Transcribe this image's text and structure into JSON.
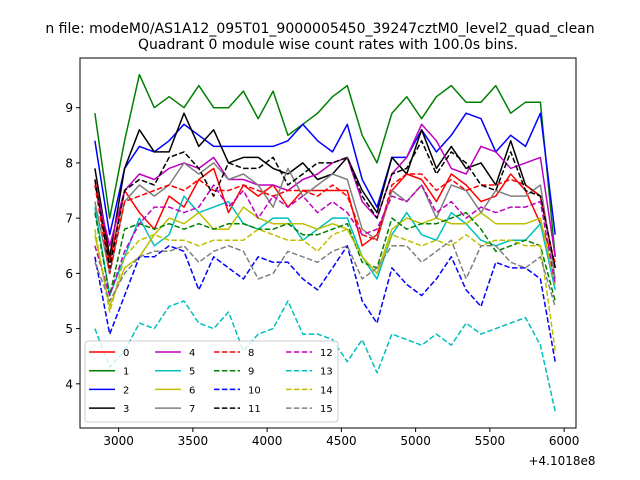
{
  "chart_data": {
    "type": "line",
    "suptitle": "n file: modeM0/AS1A12_095T01_9000005450_39247cztM0_level2_quad_clean",
    "title": "Quadrant 0 module wise count rates with 100.0s bins.",
    "xlabel": "",
    "ylabel": "",
    "x_offset_label": "+4.1018e8",
    "xlim": [
      2740,
      6080
    ],
    "ylim": [
      3.2,
      9.9
    ],
    "x_ticks": [
      3000,
      3500,
      4000,
      4500,
      5000,
      5500,
      6000
    ],
    "x_tick_labels": [
      "3000",
      "3500",
      "4000",
      "4500",
      "5000",
      "5500",
      "6000"
    ],
    "y_ticks": [
      4,
      5,
      6,
      7,
      8,
      9
    ],
    "y_tick_labels": [
      "4",
      "5",
      "6",
      "7",
      "8",
      "9"
    ],
    "grid": false,
    "legend_position": "lower-left",
    "x": [
      2840,
      2940,
      3040,
      3140,
      3240,
      3340,
      3440,
      3540,
      3640,
      3740,
      3840,
      3940,
      4040,
      4140,
      4240,
      4340,
      4440,
      4540,
      4640,
      4740,
      4840,
      4940,
      5040,
      5140,
      5240,
      5340,
      5440,
      5540,
      5640,
      5740,
      5840,
      5940
    ],
    "series": [
      {
        "name": "0",
        "color": "#ff0000",
        "dash": "solid",
        "values": [
          7.7,
          6.2,
          7.5,
          7.1,
          6.8,
          7.4,
          7.2,
          7.7,
          7.9,
          7.1,
          7.6,
          7.4,
          7.6,
          7.2,
          7.5,
          7.5,
          7.5,
          7.5,
          6.5,
          6.7,
          7.5,
          7.8,
          7.7,
          7.3,
          7.8,
          7.6,
          7.3,
          7.4,
          7.8,
          7.5,
          6.9,
          6.2
        ]
      },
      {
        "name": "1",
        "color": "#008000",
        "dash": "solid",
        "values": [
          8.9,
          7.0,
          8.4,
          9.6,
          9.0,
          9.2,
          9.0,
          9.4,
          9.0,
          9.0,
          9.3,
          8.8,
          9.3,
          8.5,
          8.7,
          8.9,
          9.2,
          9.4,
          8.5,
          8.0,
          8.9,
          9.2,
          8.8,
          9.2,
          9.4,
          9.1,
          9.1,
          9.4,
          8.9,
          9.1,
          9.1,
          6.3
        ]
      },
      {
        "name": "2",
        "color": "#0000ff",
        "dash": "solid",
        "values": [
          8.4,
          6.7,
          7.9,
          8.3,
          8.2,
          8.4,
          8.7,
          8.5,
          8.3,
          8.3,
          8.3,
          8.3,
          8.3,
          8.4,
          8.7,
          8.4,
          8.2,
          8.7,
          7.7,
          7.2,
          8.1,
          8.1,
          8.6,
          8.2,
          8.5,
          8.9,
          8.8,
          8.2,
          8.5,
          8.3,
          8.9,
          6.7
        ]
      },
      {
        "name": "3",
        "color": "#000000",
        "dash": "solid",
        "values": [
          7.9,
          6.3,
          7.9,
          8.6,
          8.2,
          8.2,
          8.9,
          8.3,
          8.6,
          8.0,
          8.1,
          8.1,
          7.9,
          7.8,
          8.0,
          7.7,
          7.8,
          8.1,
          7.5,
          7.1,
          8.1,
          7.8,
          8.6,
          7.9,
          8.3,
          7.9,
          8.0,
          7.6,
          8.4,
          7.6,
          7.4,
          6.1
        ]
      },
      {
        "name": "4",
        "color": "#bf00bf",
        "dash": "solid",
        "values": [
          7.6,
          6.5,
          7.5,
          7.8,
          7.7,
          7.9,
          8.0,
          7.9,
          8.1,
          7.7,
          7.7,
          7.6,
          7.6,
          7.5,
          7.7,
          7.8,
          8.0,
          8.1,
          7.3,
          7.0,
          7.8,
          8.1,
          8.7,
          8.4,
          7.9,
          7.8,
          8.3,
          8.2,
          7.9,
          8.0,
          8.1,
          6.3
        ]
      },
      {
        "name": "5",
        "color": "#00bfbf",
        "dash": "solid",
        "values": [
          7.2,
          5.6,
          6.3,
          7.0,
          6.5,
          6.7,
          7.4,
          7.1,
          7.2,
          7.3,
          6.9,
          6.8,
          7.0,
          7.0,
          6.6,
          6.8,
          7.0,
          7.0,
          6.3,
          5.9,
          6.7,
          7.1,
          6.7,
          6.6,
          7.1,
          6.9,
          6.6,
          6.5,
          6.6,
          6.6,
          6.9,
          5.7
        ]
      },
      {
        "name": "6",
        "color": "#bfbf00",
        "dash": "solid",
        "values": [
          6.7,
          5.4,
          6.1,
          6.3,
          6.7,
          7.0,
          6.9,
          7.1,
          6.8,
          6.8,
          7.2,
          7.0,
          6.9,
          6.9,
          6.9,
          6.8,
          6.9,
          6.8,
          6.3,
          6.0,
          6.8,
          7.0,
          6.9,
          7.0,
          6.9,
          6.9,
          7.1,
          6.9,
          6.9,
          6.9,
          7.0,
          5.8
        ]
      },
      {
        "name": "7",
        "color": "#808080",
        "dash": "solid",
        "values": [
          7.3,
          6.0,
          7.3,
          7.6,
          7.4,
          7.6,
          8.0,
          7.8,
          8.0,
          7.7,
          7.8,
          7.6,
          7.2,
          7.9,
          7.4,
          7.6,
          7.8,
          7.7,
          6.8,
          6.6,
          7.5,
          7.3,
          7.6,
          7.0,
          7.6,
          7.5,
          7.1,
          7.5,
          7.4,
          7.4,
          7.6,
          5.9
        ]
      },
      {
        "name": "8",
        "color": "#ff0000",
        "dash": "dashed",
        "values": [
          7.6,
          6.0,
          7.3,
          7.4,
          7.5,
          7.6,
          7.5,
          7.7,
          7.5,
          7.5,
          7.6,
          7.5,
          7.4,
          7.5,
          7.5,
          7.4,
          7.6,
          7.4,
          6.7,
          6.6,
          7.6,
          7.8,
          7.8,
          7.5,
          7.7,
          7.5,
          7.6,
          7.6,
          7.7,
          7.6,
          7.4,
          6.1
        ]
      },
      {
        "name": "9",
        "color": "#008000",
        "dash": "dashed",
        "values": [
          7.1,
          5.6,
          6.8,
          6.9,
          6.8,
          6.9,
          6.8,
          6.9,
          6.8,
          6.9,
          6.9,
          6.8,
          6.8,
          6.9,
          6.7,
          6.7,
          6.8,
          6.9,
          6.2,
          6.1,
          7.0,
          6.8,
          6.9,
          6.9,
          7.0,
          7.1,
          6.8,
          6.4,
          6.5,
          6.6,
          6.5,
          5.5
        ]
      },
      {
        "name": "10",
        "color": "#0000ff",
        "dash": "dashed",
        "values": [
          6.3,
          4.9,
          5.6,
          6.3,
          6.3,
          6.5,
          6.4,
          5.7,
          6.3,
          6.1,
          5.9,
          6.3,
          6.2,
          6.2,
          5.9,
          5.7,
          6.1,
          6.5,
          5.5,
          5.1,
          6.1,
          5.8,
          5.6,
          5.9,
          6.3,
          5.7,
          5.4,
          6.2,
          6.1,
          6.1,
          5.9,
          4.4
        ]
      },
      {
        "name": "11",
        "color": "#000000",
        "dash": "dashed",
        "values": [
          7.7,
          6.1,
          7.5,
          7.7,
          7.6,
          8.1,
          8.2,
          7.9,
          7.4,
          8.0,
          7.9,
          7.9,
          8.1,
          7.6,
          7.8,
          8.0,
          8.0,
          8.1,
          7.4,
          7.0,
          7.8,
          7.9,
          8.4,
          7.8,
          8.2,
          8.0,
          7.6,
          7.5,
          8.2,
          7.5,
          7.4,
          6.1
        ]
      },
      {
        "name": "12",
        "color": "#bf00bf",
        "dash": "dashed",
        "values": [
          6.5,
          5.6,
          6.4,
          6.9,
          7.2,
          7.2,
          7.1,
          7.2,
          7.6,
          7.2,
          7.5,
          7.0,
          7.4,
          7.2,
          7.4,
          7.1,
          7.3,
          7.1,
          6.7,
          6.8,
          7.4,
          7.3,
          7.6,
          7.1,
          7.3,
          7.0,
          7.2,
          7.1,
          7.2,
          7.2,
          7.3,
          5.8
        ]
      },
      {
        "name": "13",
        "color": "#00bfbf",
        "dash": "dashed",
        "values": [
          5.0,
          4.3,
          4.6,
          5.1,
          5.0,
          5.4,
          5.5,
          5.1,
          5.0,
          5.3,
          4.6,
          4.9,
          5.0,
          5.5,
          4.9,
          4.9,
          4.8,
          4.4,
          4.8,
          4.2,
          4.9,
          4.8,
          4.7,
          4.9,
          4.7,
          5.1,
          4.9,
          5.0,
          5.1,
          5.2,
          4.7,
          3.5
        ]
      },
      {
        "name": "14",
        "color": "#bfbf00",
        "dash": "dashed",
        "values": [
          6.8,
          5.3,
          6.3,
          6.6,
          6.7,
          6.6,
          6.6,
          6.5,
          6.6,
          6.6,
          6.6,
          6.8,
          6.7,
          6.6,
          6.6,
          6.4,
          6.7,
          6.8,
          6.3,
          6.0,
          6.7,
          6.6,
          6.5,
          6.6,
          6.5,
          6.7,
          6.5,
          6.6,
          6.6,
          6.5,
          6.5,
          4.6
        ]
      },
      {
        "name": "15",
        "color": "#808080",
        "dash": "dashed",
        "values": [
          6.2,
          5.5,
          6.0,
          6.3,
          6.4,
          6.4,
          6.5,
          6.2,
          6.4,
          6.5,
          6.4,
          5.9,
          6.0,
          6.4,
          6.3,
          6.2,
          6.4,
          6.5,
          5.9,
          6.1,
          6.5,
          6.5,
          6.2,
          6.4,
          6.6,
          5.9,
          6.5,
          6.5,
          6.2,
          6.1,
          6.3,
          5.4
        ]
      }
    ]
  }
}
